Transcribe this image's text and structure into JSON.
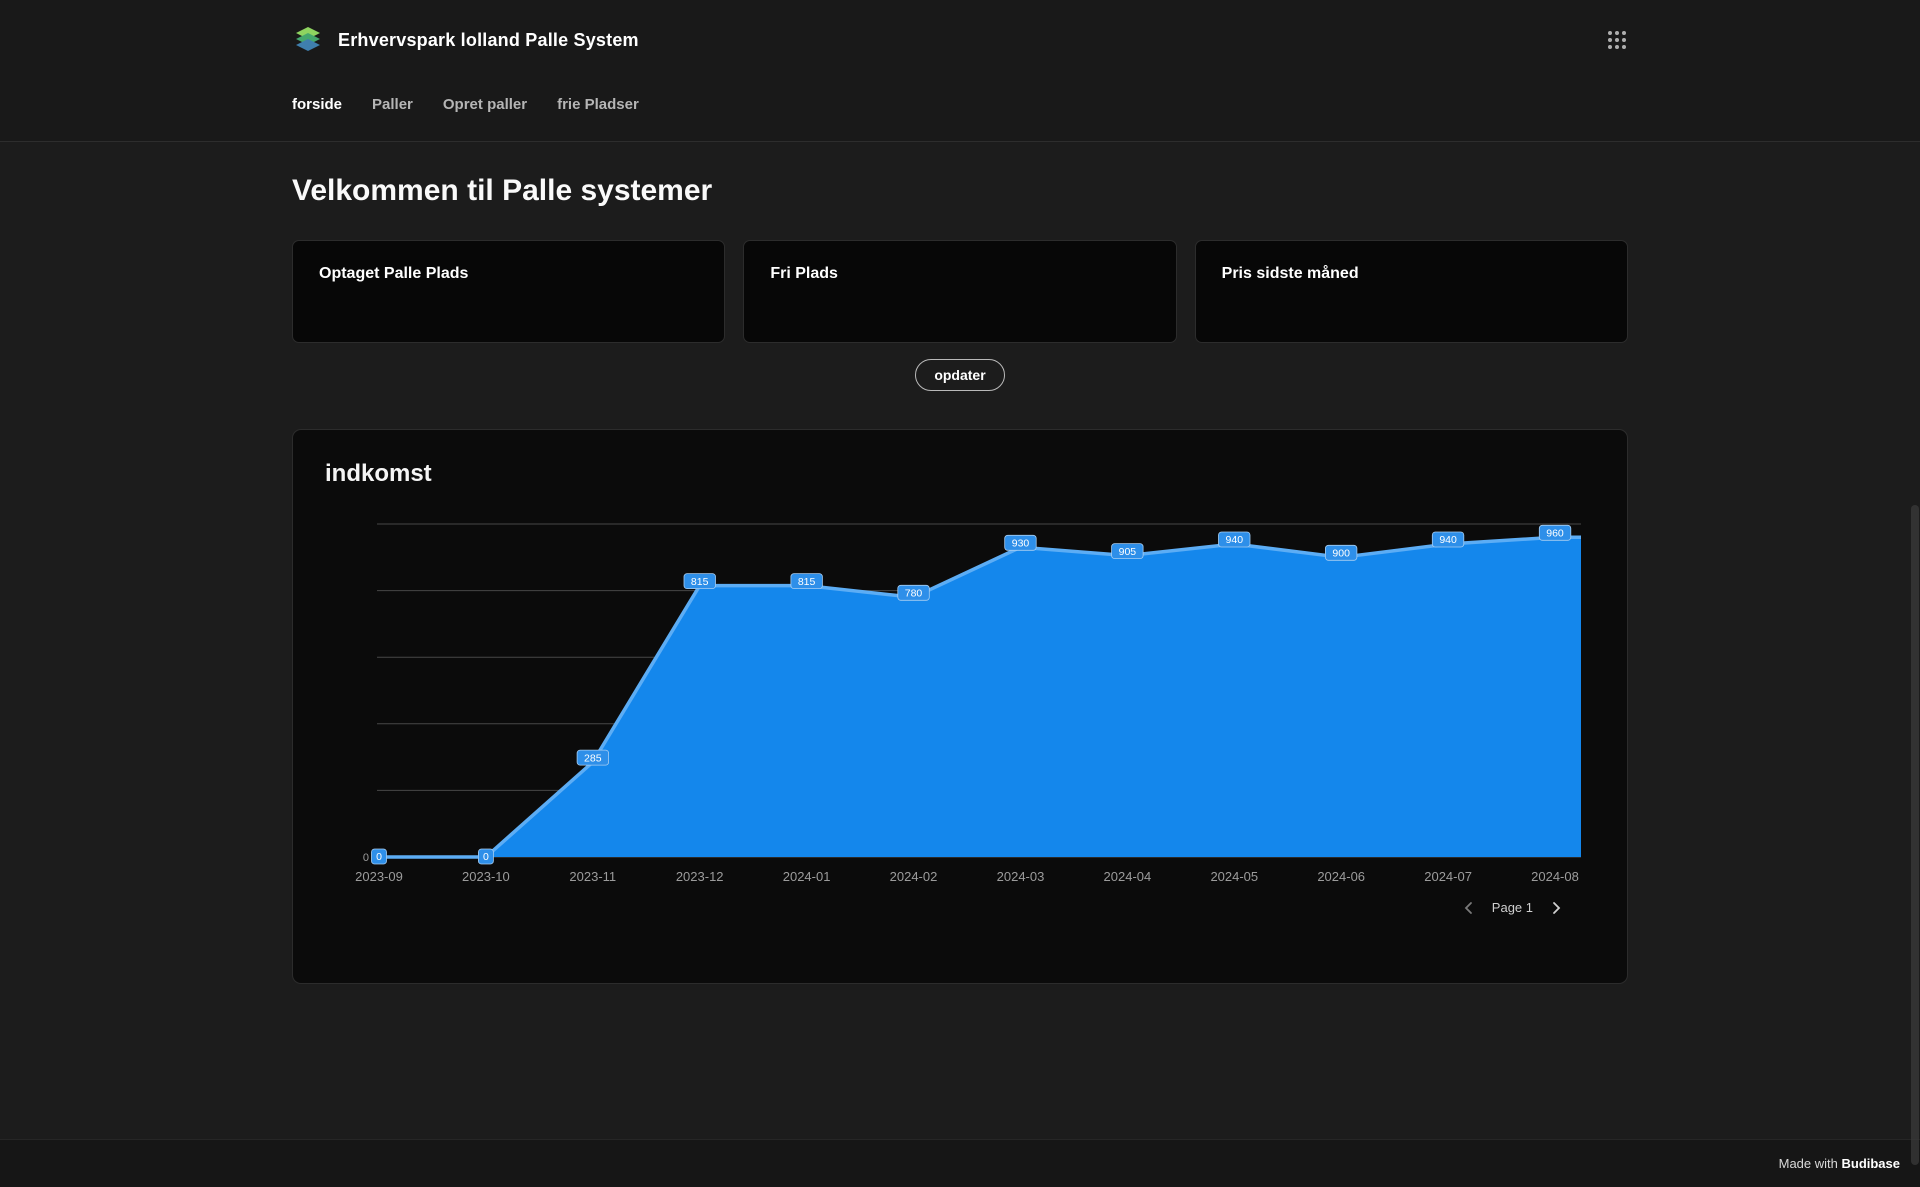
{
  "header": {
    "app_title": "Erhvervspark lolland Palle System",
    "nav": [
      {
        "label": "forside",
        "active": true
      },
      {
        "label": "Paller",
        "active": false
      },
      {
        "label": "Opret paller",
        "active": false
      },
      {
        "label": "frie Pladser",
        "active": false
      }
    ]
  },
  "page": {
    "title": "Velkommen til Palle systemer",
    "cards": [
      {
        "title": "Optaget Palle Plads"
      },
      {
        "title": "Fri Plads"
      },
      {
        "title": "Pris sidste måned"
      }
    ],
    "update_button": "opdater"
  },
  "chart_card": {
    "title": "indkomst",
    "pagination_label": "Page 1"
  },
  "chart_data": {
    "type": "area",
    "title": "indkomst",
    "categories": [
      "2023-09",
      "2023-10",
      "2023-11",
      "2023-12",
      "2024-01",
      "2024-02",
      "2024-03",
      "2024-04",
      "2024-05",
      "2024-06",
      "2024-07",
      "2024-08"
    ],
    "values": [
      0,
      0,
      285,
      815,
      815,
      780,
      930,
      905,
      940,
      900,
      940,
      960
    ],
    "ylim": [
      0,
      1000
    ],
    "y_axis_label_zero": "0",
    "grid": true,
    "legend": "none",
    "data_labels": true,
    "fill_color": "#1487ec",
    "line_color": "#5cadf5",
    "label_bg": "#2e8fe9"
  },
  "footer": {
    "made_with": "Made with ",
    "brand": "Budibase"
  }
}
